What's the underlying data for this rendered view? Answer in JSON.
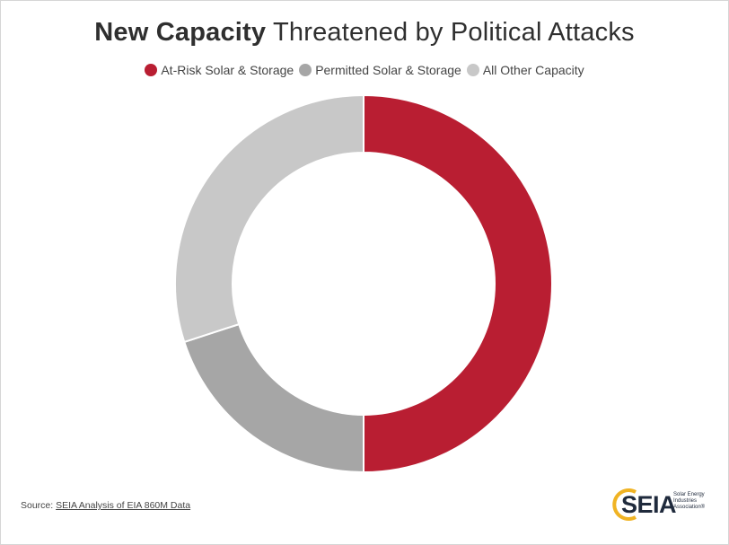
{
  "title": {
    "bold": "New Capacity",
    "rest": " Threatened by Political Attacks"
  },
  "legend": [
    {
      "label": "At-Risk Solar & Storage",
      "color": "#b91e32"
    },
    {
      "label": "Permitted Solar & Storage",
      "color": "#a6a6a6"
    },
    {
      "label": "All Other Capacity",
      "color": "#c8c8c8"
    }
  ],
  "chart_data": {
    "type": "pie",
    "variant": "doughnut",
    "title": "New Capacity Threatened by Political Attacks",
    "categories": [
      "At-Risk Solar & Storage",
      "Permitted Solar & Storage",
      "All Other Capacity"
    ],
    "values": [
      50,
      20,
      30
    ],
    "unit": "%",
    "colors": [
      "#b91e32",
      "#a6a6a6",
      "#c8c8c8"
    ],
    "legend_position": "top"
  },
  "source": {
    "prefix": "Source: ",
    "link_text": "SEIA Analysis of EIA 860M Data"
  },
  "logo": {
    "word": "SEIA",
    "tagline": "Solar Energy Industries Association®"
  }
}
